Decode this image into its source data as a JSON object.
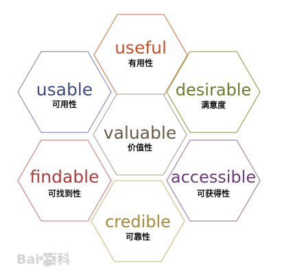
{
  "hexagons": [
    {
      "id": "useful",
      "en": "useful",
      "zh": "有用性",
      "color": "#c8502a",
      "stroke": "#d78a5c"
    },
    {
      "id": "usable",
      "en": "usable",
      "zh": "可用性",
      "color": "#3c4a86",
      "stroke": "#8f95bd"
    },
    {
      "id": "desirable",
      "en": "desirable",
      "zh": "满意度",
      "color": "#6d7a2e",
      "stroke": "#9cab5c"
    },
    {
      "id": "valuable",
      "en": "valuable",
      "zh": "价值性",
      "color": "#6a5a46",
      "stroke": "#b8ac9c"
    },
    {
      "id": "findable",
      "en": "findable",
      "zh": "可找到性",
      "color": "#b23a3a",
      "stroke": "#d08a8a"
    },
    {
      "id": "accessible",
      "en": "accessible",
      "zh": "可获得性",
      "color": "#6b3a78",
      "stroke": "#a987b2"
    },
    {
      "id": "credible",
      "en": "credible",
      "zh": "可靠性",
      "color": "#a8893a",
      "stroke": "#d6c28a"
    }
  ],
  "watermark": {
    "text": "Bai 百科",
    "color": "#cfcfcf"
  }
}
